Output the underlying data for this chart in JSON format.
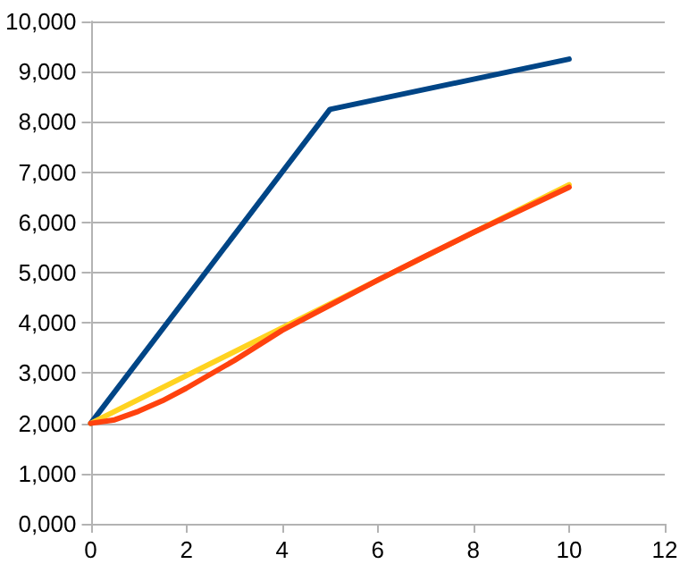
{
  "chart_data": {
    "type": "line",
    "xlim": [
      0,
      12
    ],
    "xticks": [
      0,
      2,
      4,
      6,
      8,
      10,
      12
    ],
    "ylim": [
      0,
      10000
    ],
    "yticks": [
      {
        "value": 0,
        "label": "0,000"
      },
      {
        "value": 1000,
        "label": "1,000"
      },
      {
        "value": 2000,
        "label": "2,000"
      },
      {
        "value": 3000,
        "label": "3,000"
      },
      {
        "value": 4000,
        "label": "4,000"
      },
      {
        "value": 5000,
        "label": "5,000"
      },
      {
        "value": 6000,
        "label": "6,000"
      },
      {
        "value": 7000,
        "label": "7,000"
      },
      {
        "value": 8000,
        "label": "8,000"
      },
      {
        "value": 9000,
        "label": "9,000"
      },
      {
        "value": 10000,
        "label": "10,000"
      }
    ],
    "grid": "y",
    "marker": "none",
    "line_style": "solid",
    "series": [
      {
        "color": "#004586",
        "x": [
          0,
          5,
          10
        ],
        "values": [
          2000,
          8250,
          9250
        ]
      },
      {
        "color": "#ffd320",
        "x": [
          0,
          10
        ],
        "values": [
          2000,
          6750
        ]
      },
      {
        "color": "#ff420e",
        "x": [
          0,
          0.5,
          1,
          1.5,
          2,
          3,
          4,
          5,
          6,
          7,
          8,
          9,
          10
        ],
        "values": [
          2000,
          2070,
          2240,
          2450,
          2700,
          3250,
          3850,
          4350,
          4850,
          5330,
          5800,
          6250,
          6700
        ]
      }
    ]
  }
}
